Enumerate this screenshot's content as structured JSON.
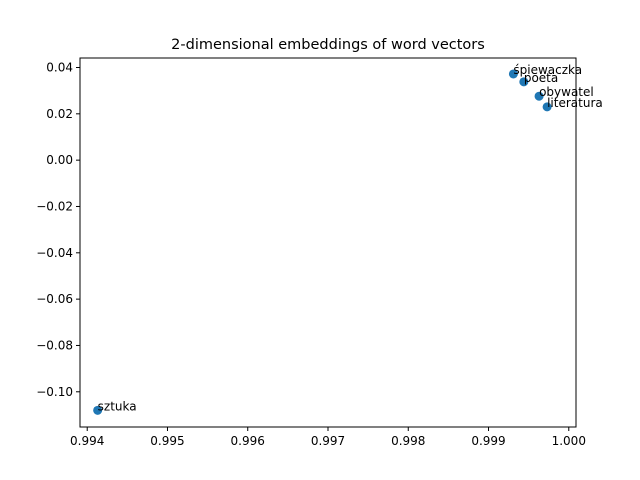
{
  "chart_data": {
    "type": "scatter",
    "title": "2-dimensional embeddings of word vectors",
    "xlabel": "",
    "ylabel": "",
    "xlim": [
      0.99391,
      1.00009
    ],
    "ylim": [
      -0.1152,
      0.0441
    ],
    "xticks": [
      {
        "value": 0.994,
        "label": "0.994"
      },
      {
        "value": 0.995,
        "label": "0.995"
      },
      {
        "value": 0.996,
        "label": "0.996"
      },
      {
        "value": 0.997,
        "label": "0.997"
      },
      {
        "value": 0.998,
        "label": "0.998"
      },
      {
        "value": 0.999,
        "label": "0.999"
      },
      {
        "value": 1.0,
        "label": "1.000"
      }
    ],
    "yticks": [
      {
        "value": 0.04,
        "label": "0.04"
      },
      {
        "value": 0.02,
        "label": "0.02"
      },
      {
        "value": 0.0,
        "label": "0.00"
      },
      {
        "value": -0.02,
        "label": "−0.02"
      },
      {
        "value": -0.04,
        "label": "−0.04"
      },
      {
        "value": -0.06,
        "label": "−0.06"
      },
      {
        "value": -0.08,
        "label": "−0.08"
      },
      {
        "value": -0.1,
        "label": "−0.10"
      }
    ],
    "grid": false,
    "marker_color": "#1f77b4",
    "points": [
      {
        "label": "śpiewaczka",
        "x": 0.99931,
        "y": 0.0372
      },
      {
        "label": "poeta",
        "x": 0.99944,
        "y": 0.0338
      },
      {
        "label": "obywatel",
        "x": 0.99963,
        "y": 0.0276
      },
      {
        "label": "literatura",
        "x": 0.99973,
        "y": 0.023
      },
      {
        "label": "sztuka",
        "x": 0.99413,
        "y": -0.108
      }
    ]
  }
}
